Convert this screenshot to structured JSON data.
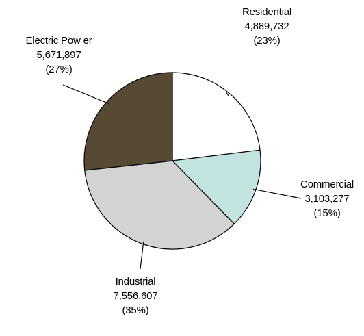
{
  "chart_data": {
    "type": "pie",
    "title": "",
    "start_angle_deg": 0,
    "direction": "clockwise",
    "legend": "none",
    "slices": [
      {
        "name": "Residential",
        "value": 4889732,
        "value_label": "4,889,732",
        "percent_label": "(23%)",
        "color": "#ffffff"
      },
      {
        "name": "Commercial",
        "value": 3103277,
        "value_label": "3,103,277",
        "percent_label": "(15%)",
        "color": "#c2e3e0"
      },
      {
        "name": "Industrial",
        "value": 7556607,
        "value_label": "7,556,607",
        "percent_label": "(35%)",
        "color": "#d3d3d3"
      },
      {
        "name": "Electric Pow er",
        "value": 5671897,
        "value_label": "5,671,897",
        "percent_label": "(27%)",
        "color": "#574a35"
      }
    ]
  }
}
